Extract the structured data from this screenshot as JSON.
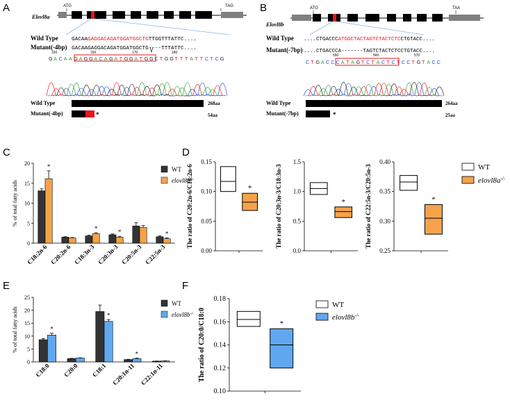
{
  "panels": {
    "A": "A",
    "B": "B",
    "C": "C",
    "D": "D",
    "E": "E",
    "F": "F"
  },
  "gene_a": {
    "name": "Elovl8a",
    "atg": "ATG",
    "tag": "TAG",
    "wt_label": "Wild Type",
    "mut_label": "Mutant(-4bp)",
    "wt_seq_pre": "GACAA",
    "wt_seq_red": "GAGGACAGATGGATGGCTG",
    "wt_seq_post": "TTGGTTTATTC....",
    "mut_seq": "GACAAGAGGACAGATGGATGGCTG----TTTATTC....",
    "trace_seq": "GACAAGAGGACAGATGGATGGCTGGTTTATTCTCG",
    "positions": [
      "150",
      "160",
      "170",
      "180"
    ],
    "prot_wt_label": "Wild Type",
    "prot_wt_len": "268aa",
    "prot_mut_label": "Mutant(-4bp)",
    "prot_mut_len": "54aa",
    "star": "*"
  },
  "gene_b": {
    "name": "Elovl8b",
    "atg": "ATG",
    "taa": "TAA",
    "wt_label": "Wild Type",
    "mut_label": "Mutant(-7bp)",
    "wt_seq_pre": "....CTGACCC",
    "wt_seq_red": "ATGGCTACTAGTCTACTCTC",
    "wt_seq_post": "CTGTACC....",
    "mut_seq": "....CTGACCCA-------TAGTCTACTCTCCTGTACC....",
    "trace_seq": "CTGACCCATAGTCTACTCTCCTGTACC",
    "positions": [
      "550",
      "560",
      "570"
    ],
    "prot_wt_label": "Wild Type",
    "prot_wt_len": "264aa",
    "prot_mut_label": "Mutant(-7bp)",
    "prot_mut_len": "25aa",
    "star": "*"
  },
  "colors": {
    "wt_bar": "#333333",
    "mut_orange": "#f5a24a",
    "mut_blue": "#5fa8f0",
    "red": "#e8141a"
  },
  "chart_data": [
    {
      "id": "C",
      "type": "bar",
      "ylabel": "% of total fatty acids",
      "ylim": [
        0,
        20
      ],
      "yticks": [
        "0",
        "5",
        "10",
        "15",
        "20"
      ],
      "categories": [
        "C18:2n-6",
        "C20:2n-6",
        "C18:3n-3",
        "C20:3n-3",
        "C20:5n-3",
        "C22:5n-3"
      ],
      "series": [
        {
          "name": "WT",
          "values": [
            13.1,
            1.5,
            1.8,
            2.1,
            4.3,
            1.6
          ],
          "errors": [
            0.5,
            0.1,
            0.2,
            0.2,
            0.8,
            0.2
          ]
        },
        {
          "name": "elovl8a",
          "sup": "-/-",
          "values": [
            16.1,
            1.3,
            2.4,
            1.5,
            3.9,
            1.1
          ],
          "errors": [
            2.0,
            0.1,
            0.2,
            0.2,
            0.5,
            0.2
          ]
        }
      ],
      "stars": [
        "*",
        "",
        "*",
        "*",
        "",
        "*"
      ]
    },
    {
      "id": "D1",
      "type": "box",
      "ylabel": "The ratio of C20:2n-6/C18:2n-6",
      "ylim": [
        0,
        0.15
      ],
      "yticks": [
        "0.00",
        "0.05",
        "0.10",
        "0.15"
      ],
      "boxes": [
        {
          "min": 0.1,
          "median": 0.117,
          "max": 0.142
        },
        {
          "min": 0.068,
          "median": 0.082,
          "max": 0.097
        }
      ],
      "star": "*"
    },
    {
      "id": "D2",
      "type": "box",
      "ylabel": "The ratio of C20:3n-3/C18:3n-3",
      "ylim": [
        0,
        1.5
      ],
      "yticks": [
        "0.0",
        "0.5",
        "1.0",
        "1.5"
      ],
      "boxes": [
        {
          "min": 0.95,
          "median": 1.05,
          "max": 1.15
        },
        {
          "min": 0.56,
          "median": 0.66,
          "max": 0.74
        }
      ],
      "star": "*"
    },
    {
      "id": "D3",
      "type": "box",
      "ylabel": "The ratio of C22:5n-3/C20:5n-3",
      "ylim": [
        0.25,
        0.4
      ],
      "yticks": [
        "0.25",
        "0.30",
        "0.35",
        "0.40"
      ],
      "boxes": [
        {
          "min": 0.352,
          "median": 0.366,
          "max": 0.377
        },
        {
          "min": 0.278,
          "median": 0.305,
          "max": 0.328
        }
      ],
      "star": "*"
    },
    {
      "id": "E",
      "type": "bar",
      "ylabel": "% of total fatty acids",
      "ylim": [
        0,
        25
      ],
      "yticks": [
        "0",
        "5",
        "10",
        "15",
        "20",
        "25"
      ],
      "categories": [
        "C18:0",
        "C20:0",
        "C18:1",
        "C20:1n-11",
        "C22:1n-11"
      ],
      "series": [
        {
          "name": "WT",
          "values": [
            8.6,
            1.3,
            19.5,
            0.9,
            0.3
          ],
          "errors": [
            0.4,
            0.1,
            2.5,
            0.1,
            0.05
          ]
        },
        {
          "name": "elovl8b",
          "sup": "-/-",
          "values": [
            10.4,
            1.5,
            15.7,
            1.3,
            0.4
          ],
          "errors": [
            0.7,
            0.1,
            0.7,
            0.2,
            0.05
          ]
        }
      ],
      "stars": [
        "*",
        "",
        "*",
        "*",
        ""
      ]
    },
    {
      "id": "F",
      "type": "box",
      "ylabel": "The ratio of C20:0/C18:0",
      "ylim": [
        0.1,
        0.18
      ],
      "yticks": [
        "0.10",
        "0.12",
        "0.14",
        "0.16",
        "0.18"
      ],
      "boxes": [
        {
          "min": 0.156,
          "median": 0.162,
          "max": 0.169
        },
        {
          "min": 0.12,
          "median": 0.14,
          "max": 0.154
        }
      ],
      "star": "*"
    }
  ],
  "legend_d": {
    "wt": "WT",
    "mut": "elovl8a",
    "sup": "-/-"
  },
  "legend_f": {
    "wt": "WT",
    "mut": "elovl8b",
    "sup": "-/-"
  }
}
